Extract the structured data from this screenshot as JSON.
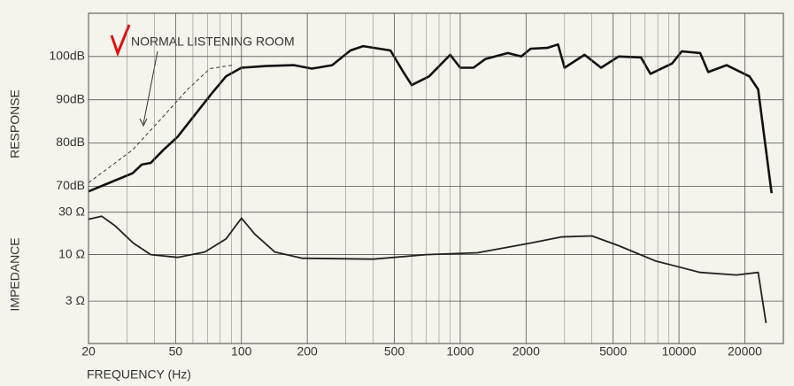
{
  "chart_data": [
    {
      "type": "line",
      "ylabel": "RESPONSE",
      "xlog": true,
      "ylog": false,
      "xlim": [
        20,
        30000
      ],
      "ylim": [
        67,
        110
      ],
      "yticks": [
        {
          "value": 70,
          "label": "70dB"
        },
        {
          "value": 80,
          "label": "80dB"
        },
        {
          "value": 90,
          "label": "90dB"
        },
        {
          "value": 100,
          "label": "100dB"
        }
      ],
      "series": [
        {
          "name": null,
          "color": "#111111",
          "dash": false,
          "width": 2.6,
          "x": [
            20,
            31.8,
            35,
            38.5,
            44,
            51,
            61,
            73,
            85,
            100,
            130,
            174,
            210,
            260,
            315,
            360,
            480,
            550,
            600,
            720,
            900,
            1000,
            1150,
            1300,
            1650,
            1900,
            2100,
            2500,
            2800,
            3000,
            3700,
            4400,
            5300,
            6700,
            7400,
            9300,
            10300,
            12500,
            13600,
            16500,
            21000,
            23000,
            26500
          ],
          "values": [
            68.8,
            73,
            75,
            75.4,
            78.4,
            81.4,
            86.4,
            91.4,
            95.4,
            97.4,
            97.8,
            98,
            97.2,
            98,
            101.4,
            102.4,
            101.4,
            96.4,
            93.4,
            95.4,
            100.4,
            97.4,
            97.4,
            99.4,
            100.8,
            100,
            101.8,
            102,
            102.8,
            97.4,
            100.4,
            97.4,
            100,
            99.8,
            96,
            98.4,
            101.2,
            100.8,
            96.4,
            98,
            95.4,
            92.4,
            68.4
          ]
        },
        {
          "name": "NORMAL LISTENING ROOM",
          "color": "#333333",
          "dash": true,
          "width": 1,
          "x": [
            20,
            31.8,
            42.6,
            56.7,
            71.8,
            91
          ],
          "values": [
            70.8,
            78.4,
            85.4,
            92.4,
            97.2,
            98
          ]
        }
      ]
    },
    {
      "type": "line",
      "ylabel": "IMPEDANCE",
      "xlabel": "FREQUENCY (Hz)",
      "xlog": true,
      "ylog": true,
      "xlim": [
        20,
        30000
      ],
      "ylim": [
        1,
        42
      ],
      "xticks": [
        20,
        50,
        100,
        200,
        500,
        1000,
        2000,
        5000,
        10000,
        20000
      ],
      "xminorticks": [
        30,
        40,
        60,
        70,
        80,
        90,
        300,
        400,
        600,
        700,
        800,
        900,
        3000,
        4000,
        6000,
        7000,
        8000,
        9000
      ],
      "yticks": [
        {
          "value": 3,
          "label": "3 Ω"
        },
        {
          "value": 10,
          "label": "10 Ω"
        },
        {
          "value": 30,
          "label": "30 Ω"
        }
      ],
      "series": [
        {
          "name": null,
          "color": "#222222",
          "dash": false,
          "width": 1.8,
          "x": [
            20,
            23,
            26.5,
            32,
            38.5,
            51,
            68,
            85,
            100,
            115,
            142,
            190,
            400,
            700,
            1200,
            2100,
            2900,
            4000,
            5300,
            7800,
            12500,
            18300,
            23000,
            25000
          ],
          "values": [
            25,
            27,
            21,
            13.5,
            10,
            9.3,
            10.7,
            15,
            25.7,
            17,
            10.7,
            9.1,
            8.9,
            10,
            10.5,
            13.5,
            15.8,
            16.2,
            12.6,
            8.5,
            6.3,
            5.9,
            6.3,
            1.7
          ]
        }
      ]
    }
  ]
}
